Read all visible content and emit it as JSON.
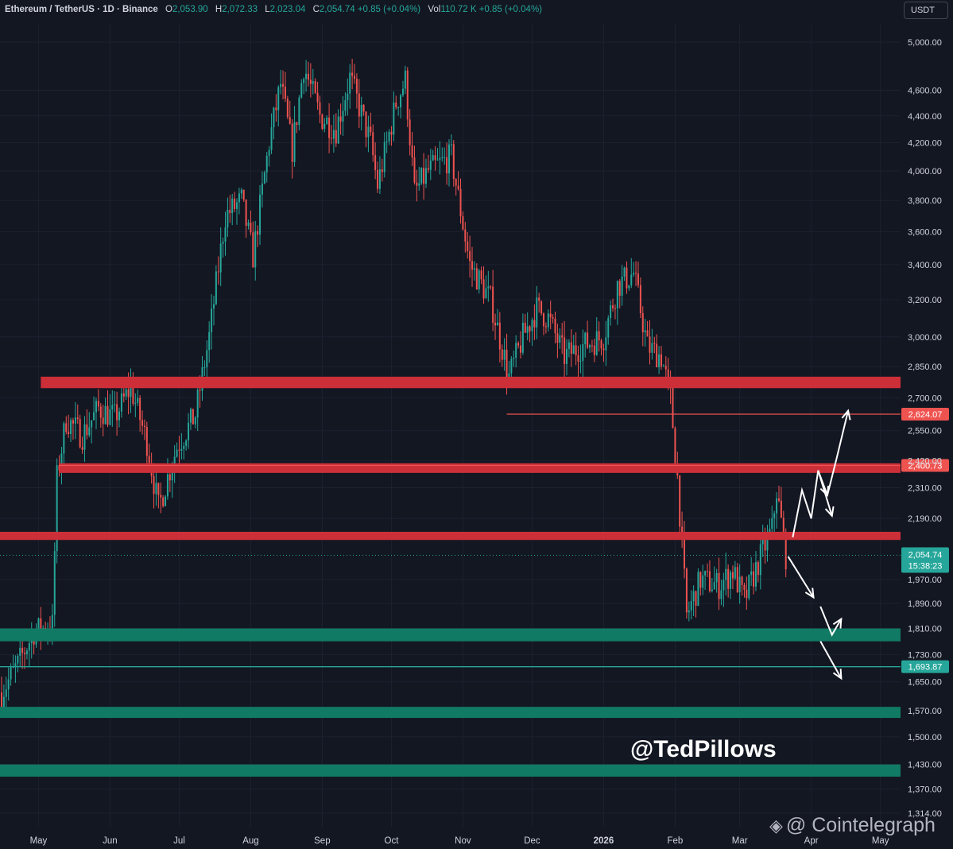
{
  "header": {
    "symbol": "Ethereum / TetherUS · 1D · Binance",
    "open_label": "O",
    "open": "2,053.90",
    "high_label": "H",
    "high": "2,072.33",
    "low_label": "L",
    "low": "2,023.04",
    "close_label": "C",
    "close": "2,054.74",
    "change": "+0.85 (+0.04%)",
    "vol_label": "Vol",
    "volume": "110.72 K",
    "vol_change": "+0.85 (+0.04%)"
  },
  "currency_button": "USDT",
  "handle": "@TedPillows",
  "watermark": "Cointelegraph",
  "colors": {
    "background": "#131722",
    "up": "#26a69a",
    "down": "#ef5350",
    "resistance_zone": "#cd2f39",
    "support_zone": "#117a65",
    "arrow": "#ffffff"
  },
  "chart_data": {
    "type": "candlestick",
    "scale": "log",
    "ylim": [
      1280,
      5300
    ],
    "y_ticks": [
      1314,
      1370,
      1430,
      1500,
      1570,
      1650,
      1730,
      1810,
      1890,
      1970,
      2190,
      2310,
      2420,
      2550,
      2700,
      2850,
      3000,
      3200,
      3400,
      3600,
      3800,
      4000,
      4200,
      4400,
      4600,
      5000
    ],
    "y_tick_labels": [
      "1,314.00",
      "1,370.00",
      "1,430.00",
      "1,500.00",
      "1,570.00",
      "1,650.00",
      "1,730.00",
      "1,810.00",
      "1,890.00",
      "1,970.00",
      "2,190.00",
      "2,310.00",
      "2,420.00",
      "2,550.00",
      "2,700.00",
      "2,850.00",
      "3,000.00",
      "3,200.00",
      "3,400.00",
      "3,600.00",
      "3,800.00",
      "4,000.00",
      "4,200.00",
      "4,400.00",
      "4,600.00",
      "5,000.00"
    ],
    "x_range": [
      "2025-04-15",
      "2026-05-08"
    ],
    "x_ticks": [
      {
        "label": "May",
        "date": "2025-05-01"
      },
      {
        "label": "Jun",
        "date": "2025-06-01"
      },
      {
        "label": "Jul",
        "date": "2025-07-01"
      },
      {
        "label": "Aug",
        "date": "2025-08-01"
      },
      {
        "label": "Sep",
        "date": "2025-09-01"
      },
      {
        "label": "Oct",
        "date": "2025-10-01"
      },
      {
        "label": "Nov",
        "date": "2025-11-01"
      },
      {
        "label": "Dec",
        "date": "2025-12-01"
      },
      {
        "label": "2026",
        "date": "2026-01-01"
      },
      {
        "label": "Feb",
        "date": "2026-02-01"
      },
      {
        "label": "Mar",
        "date": "2026-03-01"
      },
      {
        "label": "Apr",
        "date": "2026-04-01"
      },
      {
        "label": "May",
        "date": "2026-05-01"
      }
    ],
    "series": [
      {
        "price_path": [
          [
            "2025-04-15",
            1620
          ],
          [
            "2025-04-22",
            1700
          ],
          [
            "2025-04-29",
            1800
          ],
          [
            "2025-05-07",
            1820
          ],
          [
            "2025-05-09",
            2350
          ],
          [
            "2025-05-13",
            2600
          ],
          [
            "2025-05-20",
            2530
          ],
          [
            "2025-05-27",
            2650
          ],
          [
            "2025-06-03",
            2610
          ],
          [
            "2025-06-10",
            2750
          ],
          [
            "2025-06-17",
            2500
          ],
          [
            "2025-06-22",
            2230
          ],
          [
            "2025-06-30",
            2480
          ],
          [
            "2025-07-08",
            2620
          ],
          [
            "2025-07-14",
            3000
          ],
          [
            "2025-07-21",
            3700
          ],
          [
            "2025-07-28",
            3800
          ],
          [
            "2025-08-02",
            3450
          ],
          [
            "2025-08-09",
            4200
          ],
          [
            "2025-08-14",
            4650
          ],
          [
            "2025-08-19",
            4150
          ],
          [
            "2025-08-24",
            4800
          ],
          [
            "2025-08-31",
            4400
          ],
          [
            "2025-09-07",
            4300
          ],
          [
            "2025-09-13",
            4700
          ],
          [
            "2025-09-22",
            4200
          ],
          [
            "2025-09-25",
            3900
          ],
          [
            "2025-10-03",
            4500
          ],
          [
            "2025-10-07",
            4680
          ],
          [
            "2025-10-11",
            3850
          ],
          [
            "2025-10-17",
            4000
          ],
          [
            "2025-10-27",
            4100
          ],
          [
            "2025-11-04",
            3400
          ],
          [
            "2025-11-13",
            3200
          ],
          [
            "2025-11-21",
            2800
          ],
          [
            "2025-11-27",
            3000
          ],
          [
            "2025-12-03",
            3150
          ],
          [
            "2025-12-08",
            3100
          ],
          [
            "2025-12-15",
            2900
          ],
          [
            "2025-12-22",
            2950
          ],
          [
            "2026-01-01",
            3000
          ],
          [
            "2026-01-07",
            3280
          ],
          [
            "2026-01-14",
            3350
          ],
          [
            "2026-01-20",
            2950
          ],
          [
            "2026-01-26",
            2900
          ],
          [
            "2026-01-30",
            2700
          ],
          [
            "2026-02-02",
            2350
          ],
          [
            "2026-02-06",
            1850
          ],
          [
            "2026-02-12",
            1970
          ],
          [
            "2026-02-20",
            1950
          ],
          [
            "2026-02-26",
            2000
          ],
          [
            "2026-03-03",
            1900
          ],
          [
            "2026-03-10",
            2050
          ],
          [
            "2026-03-15",
            2150
          ],
          [
            "2026-03-17",
            2300
          ],
          [
            "2026-03-21",
            2054.74
          ]
        ]
      }
    ],
    "zones": [
      {
        "kind": "resistance",
        "low": 2745,
        "high": 2800,
        "from": "2025-05-02",
        "to": "chart-end"
      },
      {
        "kind": "resistance",
        "low": 2370,
        "high": 2410,
        "from": "2025-05-10",
        "to": "chart-end"
      },
      {
        "kind": "resistance",
        "low": 2110,
        "high": 2140,
        "from": "chart-start",
        "to": "chart-end"
      },
      {
        "kind": "support",
        "low": 1770,
        "high": 1810,
        "from": "chart-start",
        "to": "chart-end"
      },
      {
        "kind": "support",
        "low": 1550,
        "high": 1580,
        "from": "chart-start",
        "to": "chart-end"
      },
      {
        "kind": "support",
        "low": 1400,
        "high": 1430,
        "from": "chart-start",
        "to": "chart-end"
      }
    ],
    "levels": [
      {
        "value": 2624.07,
        "label": "2,624.07",
        "color": "#ef5350",
        "from": "2025-11-20"
      },
      {
        "value": 2400.73,
        "label": "2,400.73",
        "color": "#ef5350",
        "from": "2025-05-10"
      },
      {
        "value": 1693.87,
        "label": "1,693.87",
        "color": "#26a69a",
        "from": "chart-start"
      }
    ],
    "last_price": {
      "value": 2054.74,
      "label": "2,054.74",
      "countdown": "15:38:23",
      "color": "#26a69a"
    },
    "projections": [
      [
        [
          "2026-03-24",
          2120
        ],
        [
          "2026-03-28",
          2300
        ],
        [
          "2026-04-01",
          2190
        ],
        [
          "2026-04-04",
          2380
        ],
        [
          "2026-04-08",
          2280
        ]
      ],
      [
        [
          "2026-04-04",
          2380
        ],
        [
          "2026-04-10",
          2200
        ]
      ],
      [
        [
          "2026-04-08",
          2280
        ],
        [
          "2026-04-12",
          2430
        ],
        [
          "2026-04-17",
          2640
        ]
      ],
      [
        [
          "2026-03-22",
          2050
        ],
        [
          "2026-04-02",
          1910
        ]
      ],
      [
        [
          "2026-04-05",
          1880
        ],
        [
          "2026-04-10",
          1790
        ],
        [
          "2026-04-14",
          1840
        ]
      ],
      [
        [
          "2026-04-05",
          1770
        ],
        [
          "2026-04-14",
          1660
        ]
      ]
    ]
  }
}
